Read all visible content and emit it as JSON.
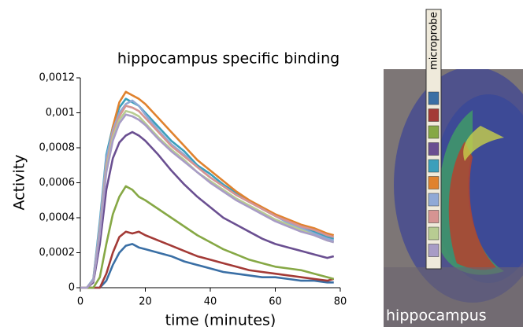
{
  "chart_data": {
    "type": "line",
    "title": "hippocampus specific binding",
    "xlabel": "time (minutes)",
    "ylabel": "Activity",
    "legend_title": "microprobe",
    "image_caption": "hippocampus",
    "xlim": [
      0,
      80
    ],
    "xticks": [
      0,
      20,
      40,
      60,
      80
    ],
    "ylim": [
      0,
      0.0012
    ],
    "yticks": [
      0,
      {
        "value": 0.0002,
        "label": "0,0002"
      },
      {
        "value": 0.0004,
        "label": "0,0004"
      },
      {
        "value": 0.0006,
        "label": "0,0006"
      },
      {
        "value": 0.0008,
        "label": "0,0008"
      },
      {
        "value": 0.001,
        "label": "0,001"
      },
      {
        "value": 0.0012,
        "label": "0,0012"
      }
    ],
    "x": [
      0,
      2,
      4,
      6,
      8,
      10,
      12,
      14,
      16,
      18,
      20,
      24,
      28,
      32,
      36,
      40,
      44,
      48,
      52,
      56,
      60,
      64,
      68,
      72,
      76,
      78
    ],
    "series": [
      {
        "color": "#3a6fa5",
        "values": [
          0,
          0,
          0,
          0,
          4e-05,
          0.00013,
          0.0002,
          0.00024,
          0.00025,
          0.00023,
          0.00022,
          0.0002,
          0.00018,
          0.00015,
          0.00013,
          0.00011,
          9e-05,
          8e-05,
          7e-05,
          6e-05,
          6e-05,
          5e-05,
          4e-05,
          4e-05,
          3e-05,
          3e-05
        ]
      },
      {
        "color": "#a33a36",
        "values": [
          0,
          0,
          0,
          0,
          8e-05,
          0.0002,
          0.00029,
          0.00032,
          0.00031,
          0.00032,
          0.0003,
          0.00027,
          0.00024,
          0.00021,
          0.00018,
          0.00016,
          0.00014,
          0.00012,
          0.0001,
          9e-05,
          8e-05,
          7e-05,
          6e-05,
          5e-05,
          4e-05,
          5e-05
        ]
      },
      {
        "color": "#86a845",
        "values": [
          0,
          0,
          0,
          6e-05,
          0.00025,
          0.00042,
          0.00052,
          0.00058,
          0.00056,
          0.00052,
          0.0005,
          0.00045,
          0.0004,
          0.00035,
          0.0003,
          0.00026,
          0.00022,
          0.00019,
          0.00016,
          0.00014,
          0.00012,
          0.00011,
          0.0001,
          8e-05,
          6e-05,
          5e-05
        ]
      },
      {
        "color": "#6a4f91",
        "values": [
          0,
          0,
          3e-05,
          0.00025,
          0.00056,
          0.00074,
          0.00083,
          0.00087,
          0.00089,
          0.00087,
          0.00084,
          0.00076,
          0.00067,
          0.00059,
          0.00052,
          0.00046,
          0.0004,
          0.00036,
          0.00032,
          0.00028,
          0.00025,
          0.00023,
          0.00021,
          0.00019,
          0.00017,
          0.00018
        ]
      },
      {
        "color": "#3b9fbb",
        "values": [
          0,
          0,
          5e-05,
          0.00038,
          0.00076,
          0.00092,
          0.00103,
          0.00108,
          0.00106,
          0.00104,
          0.001,
          0.00092,
          0.00084,
          0.00078,
          0.0007,
          0.00065,
          0.00059,
          0.00054,
          0.0005,
          0.00045,
          0.00041,
          0.00038,
          0.00035,
          0.00032,
          0.00029,
          0.00028
        ]
      },
      {
        "color": "#e0822e",
        "values": [
          0,
          0,
          4e-05,
          0.00035,
          0.00072,
          0.00092,
          0.00106,
          0.00112,
          0.0011,
          0.00108,
          0.00105,
          0.00097,
          0.00089,
          0.00081,
          0.00073,
          0.00067,
          0.00061,
          0.00055,
          0.0005,
          0.00046,
          0.00042,
          0.00039,
          0.00036,
          0.00034,
          0.00031,
          0.0003
        ]
      },
      {
        "color": "#90a9d6",
        "values": [
          0,
          0,
          5e-05,
          0.00036,
          0.00074,
          0.0009,
          0.001,
          0.00105,
          0.00107,
          0.00104,
          0.00099,
          0.0009,
          0.00082,
          0.00076,
          0.00069,
          0.00063,
          0.00058,
          0.00053,
          0.00049,
          0.00045,
          0.00041,
          0.00037,
          0.00034,
          0.00031,
          0.00028,
          0.00027
        ]
      },
      {
        "color": "#d69492",
        "values": [
          0,
          0,
          4e-05,
          0.00033,
          0.0007,
          0.00088,
          0.00098,
          0.00104,
          0.00103,
          0.00101,
          0.00097,
          0.00089,
          0.00081,
          0.00075,
          0.00069,
          0.00063,
          0.00058,
          0.00053,
          0.00049,
          0.00045,
          0.00041,
          0.00038,
          0.00035,
          0.00033,
          0.0003,
          0.00029
        ]
      },
      {
        "color": "#b8cc92",
        "values": [
          0,
          0,
          4e-05,
          0.00032,
          0.00068,
          0.00086,
          0.00096,
          0.00101,
          0.001,
          0.00098,
          0.00094,
          0.00086,
          0.00079,
          0.00073,
          0.00066,
          0.00061,
          0.00056,
          0.00051,
          0.00047,
          0.00043,
          0.00039,
          0.00036,
          0.00033,
          0.0003,
          0.00027,
          0.00026
        ]
      },
      {
        "color": "#a89cc6",
        "values": [
          0,
          0,
          4e-05,
          0.00031,
          0.00066,
          0.00084,
          0.00094,
          0.00099,
          0.00098,
          0.00096,
          0.00093,
          0.00085,
          0.00078,
          0.00072,
          0.00066,
          0.0006,
          0.00055,
          0.0005,
          0.00046,
          0.00042,
          0.00038,
          0.00035,
          0.00032,
          0.0003,
          0.00027,
          0.00026
        ]
      }
    ]
  }
}
